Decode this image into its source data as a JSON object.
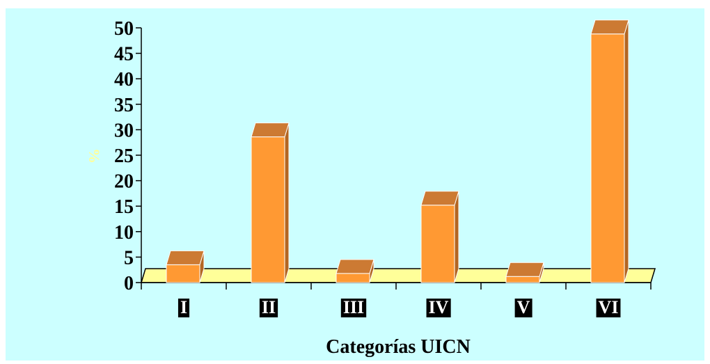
{
  "chart_data": {
    "type": "bar",
    "categories": [
      "I",
      "II",
      "III",
      "IV",
      "V",
      "VI"
    ],
    "values": [
      3.5,
      28.6,
      1.8,
      15.2,
      1.2,
      48.8
    ],
    "title": "",
    "xlabel": "Categorías UICN",
    "ylabel": "%",
    "ylim": [
      0,
      50
    ],
    "yticks": [
      0,
      5,
      10,
      15,
      20,
      25,
      30,
      35,
      40,
      45,
      50
    ],
    "grid": false,
    "colors": {
      "background": "#ccffff",
      "floor": "#ffff99",
      "bar_front": "#ff9933",
      "bar_top": "#cc7a33",
      "bar_side": "#b36622",
      "category_label_bg": "#000000",
      "category_label_text": "#ffffff",
      "ylabel_text": "#ffff99"
    }
  }
}
